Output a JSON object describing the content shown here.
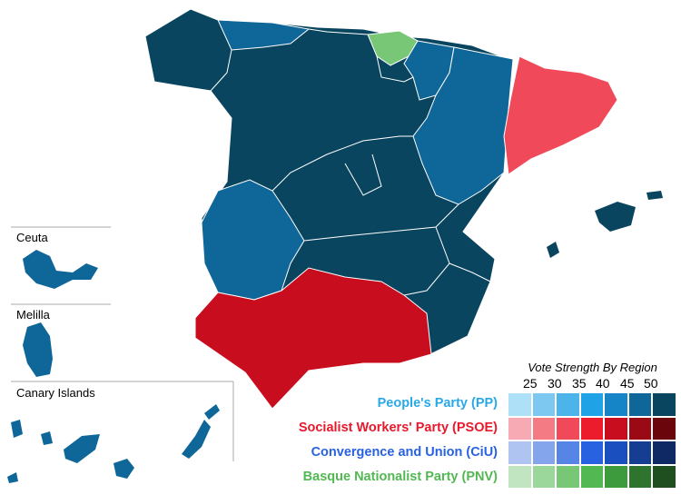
{
  "insets": {
    "ceuta": "Ceuta",
    "melilla": "Melilla",
    "canary": "Canary Islands"
  },
  "legend": {
    "title": "Vote Strength By Region",
    "ticks": [
      "25",
      "30",
      "35",
      "40",
      "45",
      "50"
    ],
    "parties": [
      {
        "label": "People's Party (PP)",
        "color": "#29a8e8",
        "shades": [
          "#aee0f7",
          "#7cc8f0",
          "#4db4ea",
          "#1fa3e6",
          "#1585c8",
          "#0f6698",
          "#0a4560"
        ]
      },
      {
        "label": "Socialist Workers' Party (PSOE)",
        "color": "#e8192c",
        "shades": [
          "#f7aab3",
          "#f47a84",
          "#f04a5a",
          "#ec1c2c",
          "#c80e1e",
          "#990a15",
          "#6a050c"
        ]
      },
      {
        "label": "Convergence and Union (CiU)",
        "color": "#2862e0",
        "shades": [
          "#b0c4f2",
          "#84a4ec",
          "#5785e6",
          "#2862e0",
          "#1a4fc0",
          "#153d92",
          "#0e2964"
        ]
      },
      {
        "label": "Basque Nationalist Party (PNV)",
        "color": "#52b852",
        "shades": [
          "#c0e5c0",
          "#9bd69b",
          "#77c777",
          "#52b852",
          "#3d9a3d",
          "#2e732e",
          "#1f4f1f"
        ]
      }
    ]
  },
  "region_colors": {
    "pp_strong": "#0a4560",
    "pp_mid": "#0f6698",
    "psoe_andalusia": "#c80e1e",
    "psoe_catalonia": "#f04a5a",
    "pnv_basque": "#77c777"
  }
}
